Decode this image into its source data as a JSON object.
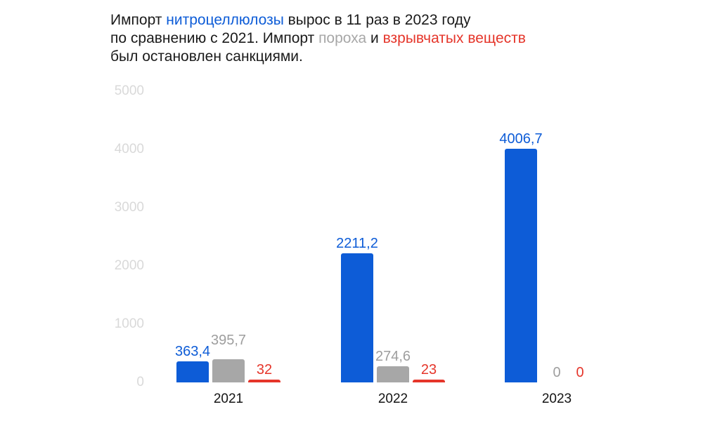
{
  "colors": {
    "black": "#1a1a1a",
    "blue": "#0d5cd7",
    "gray": "#a7a7a7",
    "gray_text": "#9e9e9e",
    "red": "#e5352a",
    "axis_tick": "#d9d9d9"
  },
  "title": {
    "full_text": "Импорт нитроцеллюлозы вырос в 11 раз в 2023 году по сравнению с 2021. Импорт пороха и взрывчатых веществ был остановлен санкциями.",
    "segments": [
      {
        "text": "Импорт ",
        "color": "black"
      },
      {
        "text": "нитроцеллюлозы",
        "color": "blue"
      },
      {
        "text": " вырос в 11 раз в 2023 году\nпо сравнению с 2021. Импорт ",
        "color": "black"
      },
      {
        "text": "пороха",
        "color": "gray"
      },
      {
        "text": " и ",
        "color": "black"
      },
      {
        "text": "взрывчатых веществ",
        "color": "red"
      },
      {
        "text": "\nбыл остановлен санкциями.",
        "color": "black"
      }
    ]
  },
  "chart_data": {
    "type": "bar",
    "title": "Импорт нитроцеллюлозы вырос в 11 раз в 2023 году по сравнению с 2021. Импорт пороха и взрывчатых веществ был остановлен санкциями.",
    "categories": [
      "2021",
      "2022",
      "2023"
    ],
    "series": [
      {
        "name": "нитроцеллюлоза",
        "key": "nitrocellulose",
        "color_key": "blue",
        "values": [
          363.4,
          2211.2,
          4006.7
        ],
        "value_labels": [
          "363,4",
          "2211,2",
          "4006,7"
        ]
      },
      {
        "name": "порох",
        "key": "gunpowder",
        "color_key": "gray",
        "values": [
          395.7,
          274.6,
          0
        ],
        "value_labels": [
          "395,7",
          "274,6",
          "0"
        ]
      },
      {
        "name": "взрывчатые вещества",
        "key": "explosives",
        "color_key": "red",
        "values": [
          32,
          23,
          0
        ],
        "value_labels": [
          "32",
          "23",
          "0"
        ]
      }
    ],
    "xlabel": "",
    "ylabel": "",
    "ylim": [
      0,
      5000
    ],
    "yticks": [
      "5000",
      "4000",
      "3000",
      "2000",
      "1000",
      "0"
    ],
    "ytick_values": [
      5000,
      4000,
      3000,
      2000,
      1000,
      0
    ],
    "grid": false,
    "legend": "none"
  }
}
